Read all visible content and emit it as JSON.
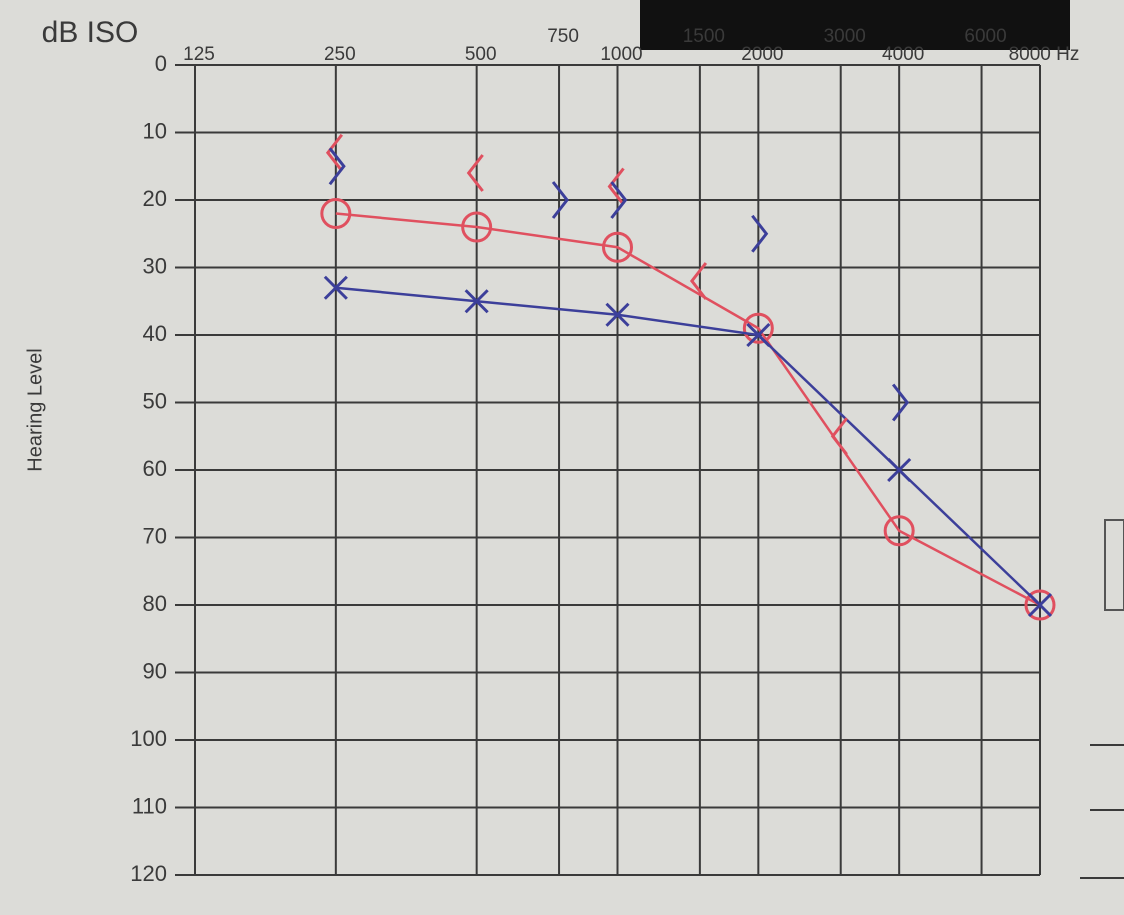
{
  "chart_data": {
    "type": "line",
    "title": "dB ISO",
    "y_label": "Hearing Level",
    "xscale": "log",
    "xlim": [
      125,
      8000
    ],
    "xticks": [
      125,
      250,
      500,
      750,
      1000,
      1500,
      2000,
      3000,
      4000,
      6000,
      {
        "value": 8000,
        "label": "8000 Hz"
      }
    ],
    "ylim": [
      0,
      120
    ],
    "y_inverted": true,
    "yticks": [
      0,
      10,
      20,
      30,
      40,
      50,
      60,
      70,
      80,
      90,
      100,
      110,
      120
    ],
    "grid": true,
    "series": [
      {
        "color": "#e0505f",
        "marker": "circle",
        "line": true,
        "x": [
          250,
          500,
          1000,
          2000,
          4000,
          8000
        ],
        "values": [
          22,
          24,
          27,
          39,
          69,
          80
        ]
      },
      {
        "color": "#3c3f9a",
        "marker": "cross",
        "line": true,
        "x": [
          250,
          500,
          1000,
          2000,
          4000,
          8000
        ],
        "values": [
          33,
          35,
          37,
          40,
          60,
          80
        ]
      },
      {
        "color": "#e0505f",
        "marker": "bracket-left",
        "line": false,
        "x": [
          250,
          500,
          1000,
          1500,
          3000
        ],
        "values": [
          13,
          16,
          18,
          32,
          55
        ]
      },
      {
        "color": "#3c3f9a",
        "marker": "bracket-right",
        "line": false,
        "x": [
          250,
          750,
          1000,
          2000,
          4000
        ],
        "values": [
          15,
          20,
          20,
          25,
          50
        ]
      }
    ]
  }
}
